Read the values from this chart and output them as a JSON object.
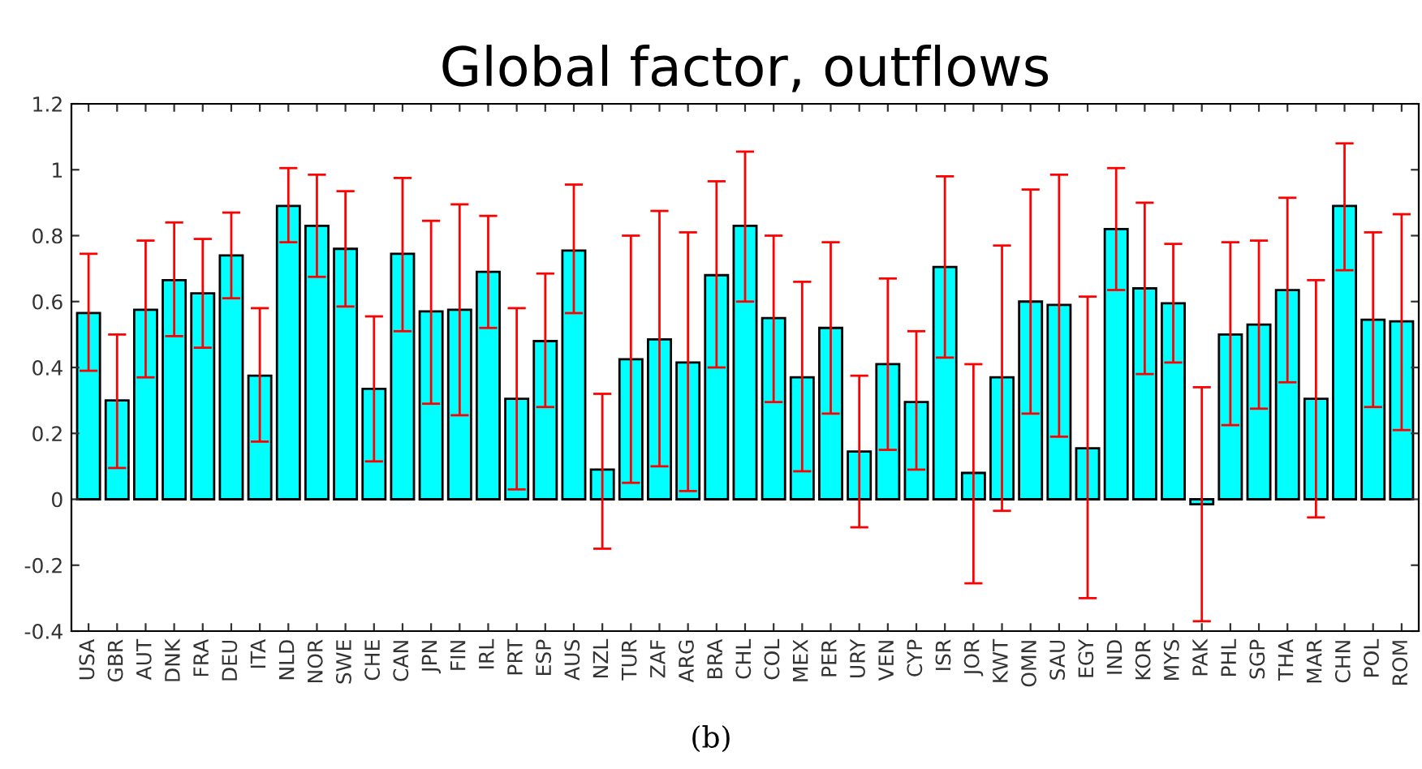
{
  "chart_data": {
    "type": "bar",
    "title": "Global factor, outflows",
    "categories": [
      "USA",
      "GBR",
      "AUT",
      "DNK",
      "FRA",
      "DEU",
      "ITA",
      "NLD",
      "NOR",
      "SWE",
      "CHE",
      "CAN",
      "JPN",
      "FIN",
      "IRL",
      "PRT",
      "ESP",
      "AUS",
      "NZL",
      "TUR",
      "ZAF",
      "ARG",
      "BRA",
      "CHL",
      "COL",
      "MEX",
      "PER",
      "URY",
      "VEN",
      "CYP",
      "ISR",
      "JOR",
      "KWT",
      "OMN",
      "SAU",
      "EGY",
      "IND",
      "KOR",
      "MYS",
      "PAK",
      "PHL",
      "SGP",
      "THA",
      "MAR",
      "CHN",
      "POL",
      "ROM"
    ],
    "series": [
      {
        "color": "#00ffff",
        "values": [
          0.565,
          0.3,
          0.575,
          0.665,
          0.625,
          0.74,
          0.375,
          0.89,
          0.83,
          0.76,
          0.335,
          0.745,
          0.57,
          0.575,
          0.69,
          0.305,
          0.48,
          0.755,
          0.09,
          0.425,
          0.485,
          0.415,
          0.68,
          0.83,
          0.55,
          0.37,
          0.52,
          0.145,
          0.41,
          0.295,
          0.705,
          0.08,
          0.37,
          0.6,
          0.59,
          0.155,
          0.82,
          0.64,
          0.595,
          -0.015,
          0.5,
          0.53,
          0.635,
          0.305,
          0.89,
          0.545,
          0.54
        ],
        "errors": [
          [
            0.39,
            0.745
          ],
          [
            0.095,
            0.5
          ],
          [
            0.37,
            0.785
          ],
          [
            0.495,
            0.84
          ],
          [
            0.46,
            0.79
          ],
          [
            0.61,
            0.87
          ],
          [
            0.175,
            0.58
          ],
          [
            0.78,
            1.005
          ],
          [
            0.675,
            0.985
          ],
          [
            0.585,
            0.935
          ],
          [
            0.115,
            0.555
          ],
          [
            0.51,
            0.975
          ],
          [
            0.29,
            0.845
          ],
          [
            0.255,
            0.895
          ],
          [
            0.52,
            0.86
          ],
          [
            0.03,
            0.58
          ],
          [
            0.28,
            0.685
          ],
          [
            0.565,
            0.955
          ],
          [
            -0.15,
            0.32
          ],
          [
            0.05,
            0.8
          ],
          [
            0.1,
            0.875
          ],
          [
            0.025,
            0.81
          ],
          [
            0.4,
            0.965
          ],
          [
            0.6,
            1.055
          ],
          [
            0.295,
            0.8
          ],
          [
            0.085,
            0.66
          ],
          [
            0.26,
            0.78
          ],
          [
            -0.085,
            0.375
          ],
          [
            0.15,
            0.67
          ],
          [
            0.09,
            0.51
          ],
          [
            0.43,
            0.98
          ],
          [
            -0.255,
            0.41
          ],
          [
            -0.035,
            0.77
          ],
          [
            0.26,
            0.94
          ],
          [
            0.19,
            0.985
          ],
          [
            -0.3,
            0.615
          ],
          [
            0.635,
            1.005
          ],
          [
            0.38,
            0.9
          ],
          [
            0.415,
            0.775
          ],
          [
            -0.37,
            0.34
          ],
          [
            0.225,
            0.78
          ],
          [
            0.275,
            0.785
          ],
          [
            0.355,
            0.915
          ],
          [
            -0.055,
            0.665
          ],
          [
            0.695,
            1.08
          ],
          [
            0.28,
            0.81
          ],
          [
            0.21,
            0.865
          ]
        ]
      }
    ],
    "ylim": [
      -0.4,
      1.2
    ],
    "yticks": [
      {
        "value": -0.4,
        "label": "-0.4"
      },
      {
        "value": -0.2,
        "label": "-0.2"
      },
      0,
      0.2,
      0.4,
      0.6,
      0.8,
      1,
      1.2
    ],
    "grid": false,
    "legend": false,
    "annotations": [
      "(b)"
    ]
  }
}
